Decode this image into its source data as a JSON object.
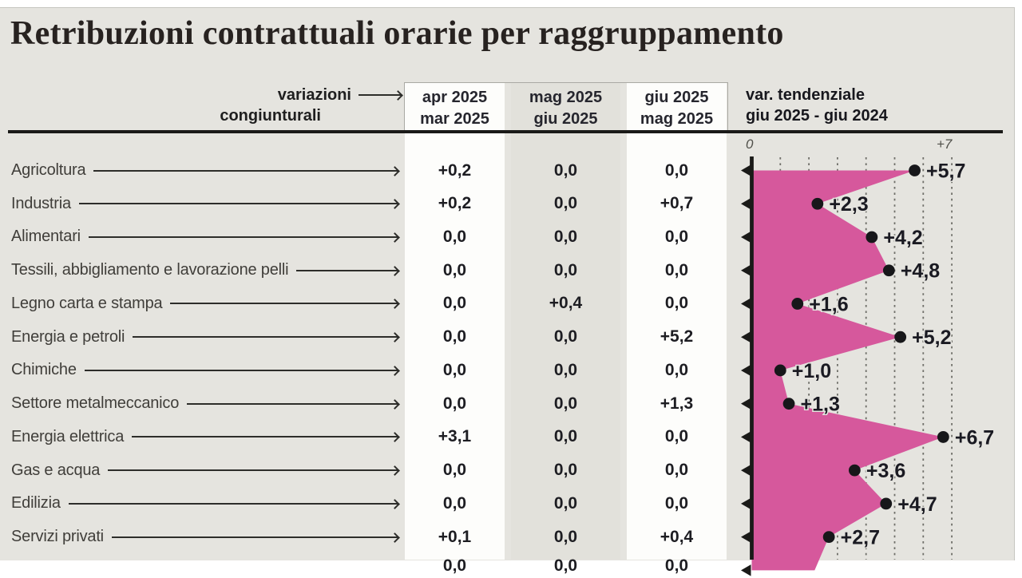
{
  "title": "Retribuzioni contrattuali orarie per raggruppamento",
  "header": {
    "left_line1": "variazioni",
    "left_line2": "congiunturali",
    "columns": [
      {
        "line1": "apr 2025",
        "line2": "mar 2025"
      },
      {
        "line1": "mag 2025",
        "line2": "giu 2025"
      },
      {
        "line1": "giu 2025",
        "line2": "mag 2025"
      }
    ],
    "right_line1": "var. tendenziale",
    "right_line2": "giu 2025 - giu 2024"
  },
  "axis": {
    "min_label": "0",
    "max_label": "+7"
  },
  "rows": [
    {
      "label": "Agricoltura",
      "values": [
        "+0,2",
        "0,0",
        "0,0"
      ],
      "tendenziale_label": "+5,7"
    },
    {
      "label": "Industria",
      "values": [
        "+0,2",
        "0,0",
        "+0,7"
      ],
      "tendenziale_label": "+2,3"
    },
    {
      "label": "Alimentari",
      "values": [
        "0,0",
        "0,0",
        "0,0"
      ],
      "tendenziale_label": "+4,2"
    },
    {
      "label": "Tessili, abbigliamento e lavorazione pelli",
      "values": [
        "0,0",
        "0,0",
        "0,0"
      ],
      "tendenziale_label": "+4,8"
    },
    {
      "label": "Legno carta e stampa",
      "values": [
        "0,0",
        "+0,4",
        "0,0"
      ],
      "tendenziale_label": "+1,6"
    },
    {
      "label": "Energia e petroli",
      "values": [
        "0,0",
        "0,0",
        "+5,2"
      ],
      "tendenziale_label": "+5,2"
    },
    {
      "label": "Chimiche",
      "values": [
        "0,0",
        "0,0",
        "0,0"
      ],
      "tendenziale_label": "+1,0"
    },
    {
      "label": "Settore metalmeccanico",
      "values": [
        "0,0",
        "0,0",
        "+1,3"
      ],
      "tendenziale_label": "+1,3"
    },
    {
      "label": "Energia elettrica",
      "values": [
        "+3,1",
        "0,0",
        "0,0"
      ],
      "tendenziale_label": "+6,7"
    },
    {
      "label": "Gas e acqua",
      "values": [
        "0,0",
        "0,0",
        "0,0"
      ],
      "tendenziale_label": "+3,6"
    },
    {
      "label": "Edilizia",
      "values": [
        "0,0",
        "0,0",
        "0,0"
      ],
      "tendenziale_label": "+4,7"
    },
    {
      "label": "Servizi privati",
      "values": [
        "+0,1",
        "0,0",
        "+0,4"
      ],
      "tendenziale_label": "+2,7"
    }
  ],
  "partial_next_row": {
    "values": [
      "0,0",
      "0,0",
      "0,0"
    ]
  },
  "chart_data": {
    "type": "area",
    "orientation": "horizontal",
    "title": "var. tendenziale giu 2025 - giu 2024",
    "categories": [
      "Agricoltura",
      "Industria",
      "Alimentari",
      "Tessili, abbigliamento e lavorazione pelli",
      "Legno carta e stampa",
      "Energia e petroli",
      "Chimiche",
      "Settore metalmeccanico",
      "Energia elettrica",
      "Gas e acqua",
      "Edilizia",
      "Servizi privati"
    ],
    "series": [
      {
        "name": "apr 2025 / mar 2025",
        "values": [
          0.2,
          0.2,
          0.0,
          0.0,
          0.0,
          0.0,
          0.0,
          0.0,
          3.1,
          0.0,
          0.0,
          0.1
        ]
      },
      {
        "name": "mag 2025 / giu 2025",
        "values": [
          0.0,
          0.0,
          0.0,
          0.0,
          0.4,
          0.0,
          0.0,
          0.0,
          0.0,
          0.0,
          0.0,
          0.0
        ]
      },
      {
        "name": "giu 2025 / mag 2025",
        "values": [
          0.0,
          0.7,
          0.0,
          0.0,
          0.0,
          5.2,
          0.0,
          1.3,
          0.0,
          0.0,
          0.0,
          0.4
        ]
      },
      {
        "name": "var. tendenziale giu 2025 - giu 2024",
        "values": [
          5.7,
          2.3,
          4.2,
          4.8,
          1.6,
          5.2,
          1.0,
          1.3,
          6.7,
          3.6,
          4.7,
          2.7
        ]
      }
    ],
    "xlim": [
      0,
      7
    ],
    "x_ticks": [
      "0",
      "+7"
    ],
    "grid": true,
    "clip_continuation_value": 2.2,
    "colors": {
      "area": "#d6589c",
      "dot": "#17171a",
      "axis": "#1a1a18"
    }
  }
}
